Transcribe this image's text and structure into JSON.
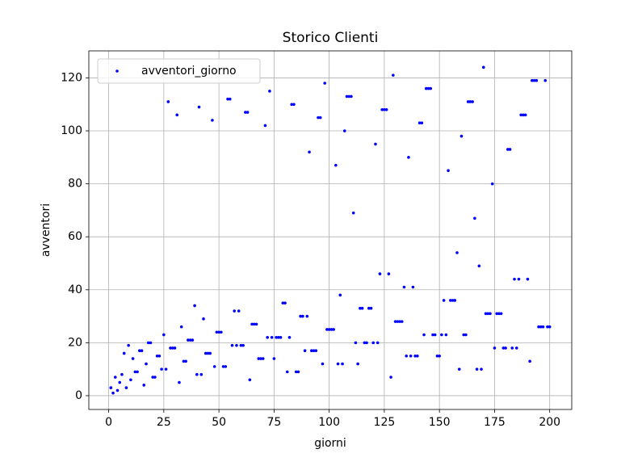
{
  "chart_data": {
    "type": "scatter",
    "title": "Storico Clienti",
    "xlabel": "giorni",
    "ylabel": "avventori",
    "xlim": [
      -9,
      210
    ],
    "ylim": [
      -5.2,
      130.2
    ],
    "xticks": [
      0,
      25,
      50,
      75,
      100,
      125,
      150,
      175,
      200
    ],
    "yticks": [
      0,
      20,
      40,
      60,
      80,
      100,
      120
    ],
    "grid": true,
    "legend": "upper left",
    "series": [
      {
        "name": "avventori_giorno",
        "color": "#0000ff",
        "x": [
          1,
          2,
          3,
          4,
          5,
          6,
          7,
          8,
          9,
          10,
          11,
          12,
          13,
          14,
          15,
          16,
          17,
          18,
          19,
          20,
          21,
          22,
          23,
          24,
          25,
          26,
          27,
          28,
          29,
          30,
          31,
          32,
          33,
          34,
          35,
          36,
          37,
          38,
          39,
          40,
          41,
          42,
          43,
          44,
          45,
          46,
          47,
          48,
          49,
          50,
          51,
          52,
          53,
          54,
          55,
          56,
          57,
          58,
          59,
          60,
          61,
          62,
          63,
          64,
          65,
          66,
          67,
          68,
          69,
          70,
          71,
          72,
          73,
          74,
          75,
          76,
          77,
          78,
          79,
          80,
          81,
          82,
          83,
          84,
          85,
          86,
          87,
          88,
          89,
          90,
          91,
          92,
          93,
          94,
          95,
          96,
          97,
          98,
          99,
          100,
          101,
          102,
          103,
          104,
          105,
          106,
          107,
          108,
          109,
          110,
          111,
          112,
          113,
          114,
          115,
          116,
          117,
          118,
          119,
          120,
          121,
          122,
          123,
          124,
          125,
          126,
          127,
          128,
          129,
          130,
          131,
          132,
          133,
          134,
          135,
          136,
          137,
          138,
          139,
          140,
          141,
          142,
          143,
          144,
          145,
          146,
          147,
          148,
          149,
          150,
          151,
          152,
          153,
          154,
          155,
          156,
          157,
          158,
          159,
          160,
          161,
          162,
          163,
          164,
          165,
          166,
          167,
          168,
          169,
          170,
          171,
          172,
          173,
          174,
          175,
          176,
          177,
          178,
          179,
          180,
          181,
          182,
          183,
          184,
          185,
          186,
          187,
          188,
          189,
          190,
          191,
          192,
          193,
          194,
          195,
          196,
          197,
          198,
          199,
          200
        ],
        "values": [
          3,
          1,
          7,
          2,
          5,
          8,
          16,
          3,
          19,
          6,
          14,
          9,
          9,
          17,
          17,
          4,
          12,
          20,
          20,
          7,
          7,
          15,
          15,
          10,
          23,
          10,
          111,
          18,
          18,
          18,
          106,
          5,
          26,
          13,
          13,
          21,
          21,
          21,
          34,
          8,
          109,
          8,
          29,
          16,
          16,
          16,
          104,
          11,
          24,
          24,
          24,
          11,
          11,
          112,
          112,
          19,
          32,
          19,
          32,
          19,
          19,
          107,
          107,
          6,
          27,
          27,
          27,
          14,
          14,
          14,
          102,
          22,
          115,
          22,
          14,
          22,
          22,
          22,
          35,
          35,
          9,
          22,
          110,
          110,
          9,
          9,
          30,
          30,
          17,
          30,
          92,
          17,
          17,
          17,
          105,
          105,
          12,
          118,
          25,
          25,
          25,
          25,
          87,
          12,
          38,
          12,
          100,
          113,
          113,
          113,
          69,
          20,
          12,
          33,
          33,
          20,
          20,
          33,
          33,
          20,
          95,
          20,
          46,
          108,
          108,
          108,
          46,
          7,
          121,
          28,
          28,
          28,
          28,
          41,
          15,
          90,
          15,
          41,
          15,
          15,
          103,
          103,
          23,
          116,
          116,
          116,
          23,
          23,
          15,
          15,
          23,
          36,
          23,
          85,
          36,
          36,
          36,
          54,
          10,
          98,
          23,
          23,
          111,
          111,
          111,
          67,
          10,
          49,
          10,
          124,
          31,
          31,
          31,
          80,
          18,
          31,
          31,
          31,
          18,
          18,
          93,
          93,
          18,
          44,
          18,
          44,
          106,
          106,
          106,
          44,
          13,
          119,
          119,
          119,
          26,
          26,
          26,
          119,
          26,
          26
        ]
      }
    ]
  }
}
